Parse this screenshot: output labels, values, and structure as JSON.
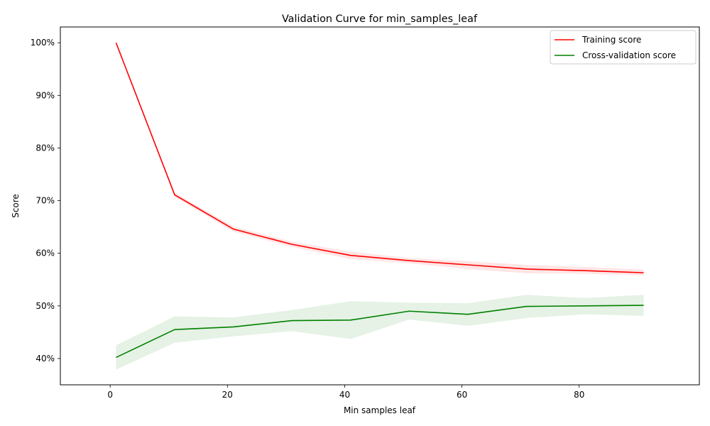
{
  "chart_data": {
    "type": "line",
    "title": "Validation Curve for min_samples_leaf",
    "xlabel": "Min samples leaf",
    "ylabel": "Score",
    "x": [
      1,
      11,
      21,
      31,
      41,
      51,
      61,
      71,
      81,
      91
    ],
    "xlim": [
      -8.5,
      100.5
    ],
    "ylim": [
      0.35,
      1.03
    ],
    "x_ticks": [
      0,
      20,
      40,
      60,
      80
    ],
    "y_ticks": [
      0.4,
      0.5,
      0.6,
      0.7,
      0.8,
      0.9,
      1.0
    ],
    "y_tick_format": "percent",
    "grid": false,
    "legend_position": "top-right",
    "series": [
      {
        "name": "Training score",
        "color": "#ff0000",
        "band_color": "#ff0000",
        "values": [
          1.0,
          0.711,
          0.646,
          0.617,
          0.596,
          0.586,
          0.578,
          0.57,
          0.567,
          0.563
        ],
        "lower": [
          1.0,
          0.707,
          0.641,
          0.612,
          0.589,
          0.581,
          0.57,
          0.562,
          0.561,
          0.558
        ],
        "upper": [
          1.0,
          0.715,
          0.651,
          0.622,
          0.603,
          0.591,
          0.585,
          0.578,
          0.574,
          0.569
        ]
      },
      {
        "name": "Cross-validation score",
        "color": "#008000",
        "band_color": "#008000",
        "values": [
          0.402,
          0.455,
          0.46,
          0.472,
          0.473,
          0.49,
          0.484,
          0.499,
          0.5,
          0.501
        ],
        "lower": [
          0.379,
          0.43,
          0.442,
          0.452,
          0.437,
          0.474,
          0.462,
          0.477,
          0.484,
          0.481
        ],
        "upper": [
          0.425,
          0.48,
          0.478,
          0.492,
          0.509,
          0.506,
          0.505,
          0.521,
          0.515,
          0.521
        ]
      }
    ]
  }
}
